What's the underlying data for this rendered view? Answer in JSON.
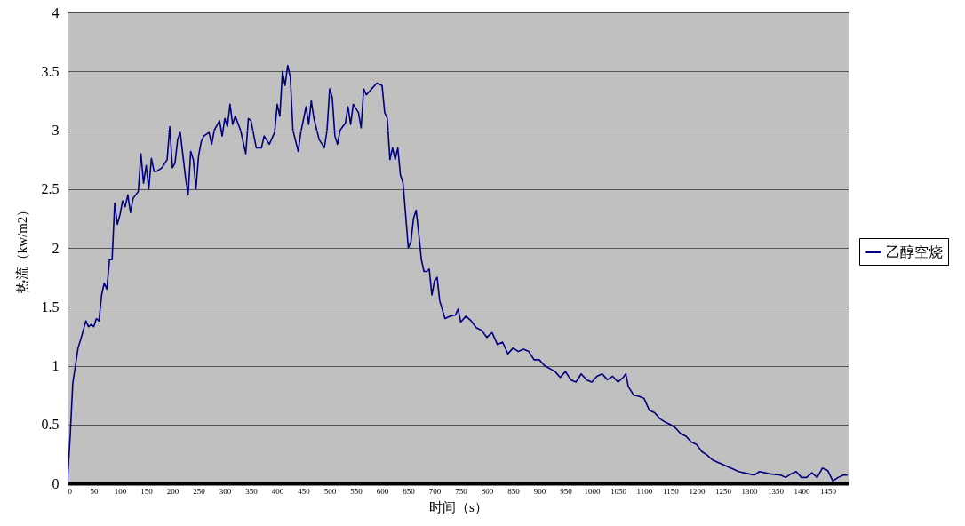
{
  "chart_data": {
    "type": "line",
    "xlabel": "时间（s）",
    "ylabel": "热流（kw/m2）",
    "xlim": [
      0,
      1490
    ],
    "xticks": [
      0,
      50,
      100,
      150,
      200,
      250,
      300,
      350,
      400,
      450,
      500,
      550,
      600,
      650,
      700,
      750,
      800,
      850,
      900,
      950,
      1000,
      1050,
      1100,
      1150,
      1200,
      1250,
      1300,
      1350,
      1400,
      1450
    ],
    "ylim": [
      0,
      4
    ],
    "yticks": [
      0,
      0.5,
      1,
      1.5,
      2,
      2.5,
      3,
      3.5,
      4
    ],
    "grid": "y",
    "legend": "right",
    "marker": "none",
    "line_style": "solid",
    "x": [
      0,
      5,
      10,
      15,
      20,
      25,
      30,
      35,
      40,
      45,
      50,
      55,
      60,
      65,
      70,
      75,
      80,
      85,
      90,
      95,
      100,
      105,
      110,
      115,
      120,
      125,
      130,
      135,
      140,
      145,
      150,
      155,
      160,
      165,
      170,
      180,
      190,
      195,
      200,
      205,
      210,
      215,
      225,
      230,
      235,
      240,
      245,
      250,
      255,
      260,
      270,
      275,
      280,
      290,
      295,
      300,
      305,
      310,
      315,
      320,
      330,
      340,
      345,
      350,
      360,
      370,
      375,
      385,
      395,
      400,
      405,
      410,
      415,
      420,
      425,
      430,
      440,
      445,
      455,
      460,
      465,
      470,
      480,
      490,
      495,
      500,
      505,
      510,
      515,
      520,
      530,
      535,
      540,
      545,
      555,
      560,
      565,
      570,
      580,
      590,
      600,
      605,
      610,
      615,
      620,
      625,
      630,
      635,
      640,
      645,
      650,
      655,
      660,
      665,
      670,
      675,
      680,
      685,
      690,
      695,
      700,
      705,
      710,
      720,
      730,
      740,
      745,
      750,
      760,
      770,
      780,
      790,
      800,
      810,
      820,
      830,
      840,
      850,
      860,
      870,
      880,
      890,
      900,
      910,
      930,
      940,
      950,
      960,
      970,
      980,
      990,
      1000,
      1010,
      1020,
      1030,
      1040,
      1050,
      1060,
      1065,
      1070,
      1080,
      1090,
      1100,
      1110,
      1120,
      1130,
      1140,
      1150,
      1160,
      1170,
      1180,
      1190,
      1200,
      1210,
      1220,
      1230,
      1240,
      1250,
      1260,
      1270,
      1280,
      1300,
      1310,
      1320,
      1340,
      1360,
      1370,
      1380,
      1390,
      1400,
      1410,
      1420,
      1430,
      1440,
      1450,
      1460,
      1470,
      1480,
      1487
    ],
    "series": [
      {
        "name": "乙醇空烧",
        "color": "#000080",
        "values": [
          0.03,
          0.4,
          0.85,
          1.0,
          1.15,
          1.22,
          1.3,
          1.38,
          1.33,
          1.35,
          1.33,
          1.4,
          1.38,
          1.6,
          1.7,
          1.65,
          1.9,
          1.9,
          2.38,
          2.2,
          2.28,
          2.4,
          2.35,
          2.45,
          2.3,
          2.42,
          2.45,
          2.48,
          2.8,
          2.55,
          2.7,
          2.5,
          2.76,
          2.65,
          2.65,
          2.68,
          2.75,
          3.03,
          2.68,
          2.72,
          2.92,
          2.98,
          2.6,
          2.45,
          2.82,
          2.75,
          2.5,
          2.78,
          2.9,
          2.95,
          2.98,
          2.88,
          3.0,
          3.08,
          2.95,
          3.1,
          3.03,
          3.22,
          3.05,
          3.12,
          3.0,
          2.8,
          3.1,
          3.08,
          2.85,
          2.85,
          2.95,
          2.88,
          2.98,
          3.22,
          3.12,
          3.5,
          3.38,
          3.55,
          3.45,
          3.0,
          2.82,
          2.98,
          3.2,
          3.05,
          3.25,
          3.1,
          2.92,
          2.85,
          3.0,
          3.35,
          3.28,
          2.95,
          2.88,
          3.0,
          3.06,
          3.2,
          3.05,
          3.22,
          3.15,
          3.02,
          3.35,
          3.3,
          3.35,
          3.4,
          3.38,
          3.15,
          3.1,
          2.75,
          2.85,
          2.75,
          2.85,
          2.62,
          2.55,
          2.28,
          2.0,
          2.05,
          2.25,
          2.32,
          2.12,
          1.9,
          1.8,
          1.8,
          1.82,
          1.6,
          1.72,
          1.75,
          1.55,
          1.4,
          1.42,
          1.43,
          1.48,
          1.37,
          1.42,
          1.38,
          1.32,
          1.3,
          1.24,
          1.28,
          1.18,
          1.2,
          1.1,
          1.15,
          1.12,
          1.14,
          1.12,
          1.05,
          1.05,
          1.0,
          0.95,
          0.9,
          0.95,
          0.88,
          0.86,
          0.93,
          0.88,
          0.86,
          0.91,
          0.93,
          0.88,
          0.91,
          0.86,
          0.9,
          0.93,
          0.82,
          0.75,
          0.74,
          0.72,
          0.62,
          0.6,
          0.55,
          0.52,
          0.5,
          0.47,
          0.42,
          0.4,
          0.35,
          0.33,
          0.27,
          0.24,
          0.2,
          0.18,
          0.16,
          0.14,
          0.12,
          0.1,
          0.08,
          0.07,
          0.1,
          0.08,
          0.07,
          0.05,
          0.08,
          0.1,
          0.05,
          0.05,
          0.09,
          0.05,
          0.13,
          0.11,
          0.02,
          0.05,
          0.07,
          0.07
        ]
      }
    ]
  }
}
